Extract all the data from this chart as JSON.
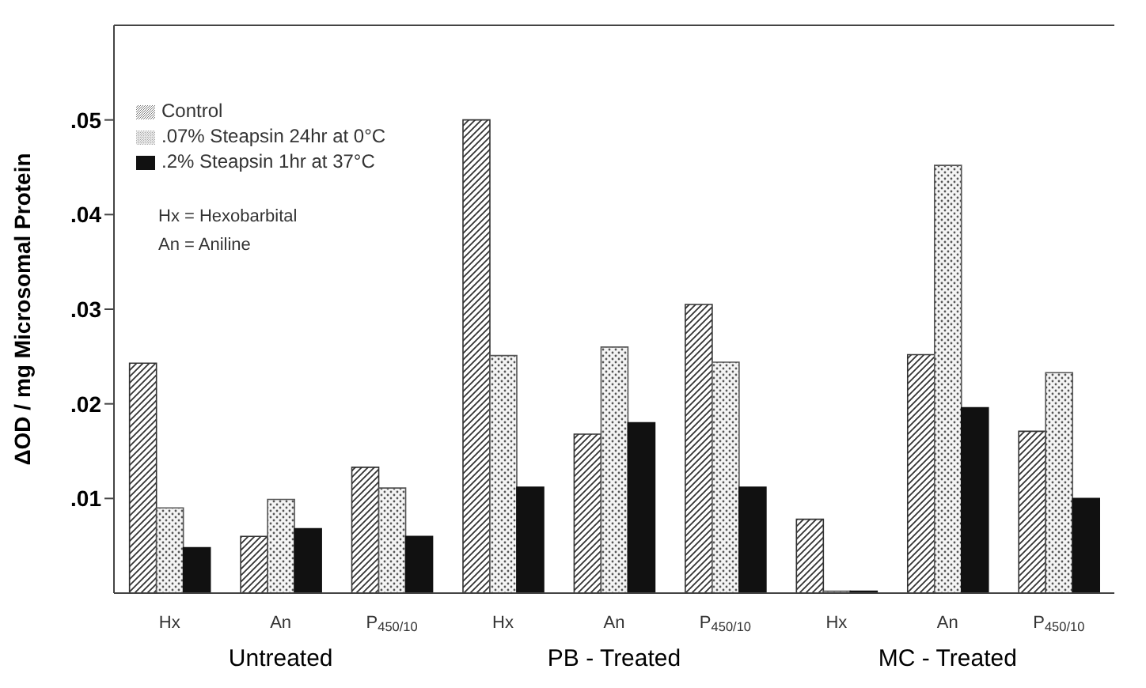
{
  "chart_data": {
    "type": "bar",
    "ylabel": "ΔOD / mg Microsomal Protein",
    "categories": [
      "Hx",
      "An",
      "P$_{450/10}$",
      "Hx",
      "An",
      "P$_{450/10}$",
      "Hx",
      "An",
      "P$_{450/10}$"
    ],
    "series": [
      {
        "name": "Control",
        "color": "#333333",
        "values": [
          0.0243,
          0.006,
          0.0133,
          0.05,
          0.0168,
          0.0305,
          0.0078,
          0.0252,
          0.0171
        ]
      },
      {
        "name": ".07% Steapsin  24hr at 0°C",
        "color": "#555555",
        "values": [
          0.009,
          0.0099,
          0.0111,
          0.0251,
          0.026,
          0.0244,
          0.0002,
          0.0452,
          0.0233
        ]
      },
      {
        "name": ".2% Steapsin  1hr at 37°C",
        "color": "#111111",
        "values": [
          0.0048,
          0.0068,
          0.006,
          0.0112,
          0.018,
          0.0112,
          0.0002,
          0.0196,
          0.01
        ]
      }
    ],
    "ylim": [
      0,
      0.06
    ],
    "yticks": [
      {
        "value": 0.01,
        "label": ".01"
      },
      {
        "value": 0.02,
        "label": ".02"
      },
      {
        "value": 0.03,
        "label": ".03"
      },
      {
        "value": 0.04,
        "label": ".04"
      },
      {
        "value": 0.05,
        "label": ".05"
      }
    ],
    "grid": false,
    "legend": "top left",
    "annotations": [
      "Untreated",
      "PB - Treated",
      "MC - Treated",
      "Hx = Hexobarbital",
      "An = Aniline"
    ]
  }
}
